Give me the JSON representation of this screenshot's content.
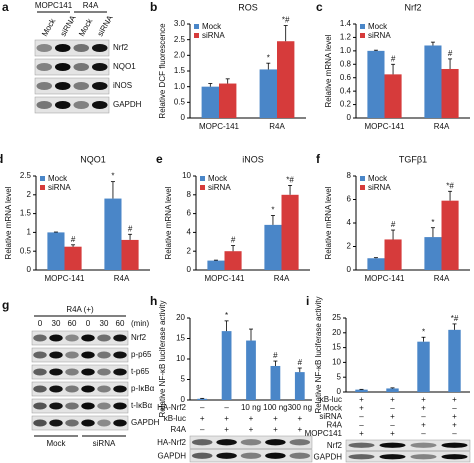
{
  "chart_data": [
    {
      "type": "bar",
      "panel": "b",
      "title": "ROS",
      "y_label": "Relative DCF fluorescence",
      "categories": [
        "MOPC-141",
        "R4A"
      ],
      "series": [
        {
          "name": "Mock",
          "color": "#4a86c8",
          "values": [
            1.0,
            1.55
          ],
          "errors": [
            0.1,
            0.2
          ],
          "annotations": [
            null,
            "*"
          ]
        },
        {
          "name": "siRNA",
          "color": "#d63b3b",
          "values": [
            1.1,
            2.45
          ],
          "errors": [
            0.15,
            0.5
          ],
          "annotations": [
            null,
            "*#"
          ]
        }
      ],
      "ylim": [
        0,
        3.0
      ],
      "yticks": [
        0,
        0.5,
        {
          "value": 1,
          "label": "1.0"
        },
        1.5,
        {
          "value": 2,
          "label": "2.0"
        },
        2.5,
        {
          "value": 3,
          "label": "3.0"
        }
      ]
    },
    {
      "type": "bar",
      "panel": "c",
      "title": "Nrf2",
      "y_label": "Relative mRNA level",
      "categories": [
        "MOPC-141",
        "R4A"
      ],
      "series": [
        {
          "name": "Mock",
          "color": "#4a86c8",
          "values": [
            1.0,
            1.08
          ],
          "errors": [
            0.01,
            0.05
          ],
          "annotations": [
            null,
            null
          ]
        },
        {
          "name": "siRNA",
          "color": "#d63b3b",
          "values": [
            0.65,
            0.73
          ],
          "errors": [
            0.15,
            0.15
          ],
          "annotations": [
            "#",
            "#"
          ]
        }
      ],
      "ylim": [
        0,
        1.4
      ],
      "yticks": [
        0,
        0.2,
        0.4,
        0.6,
        0.8,
        {
          "value": 1,
          "label": "1.0"
        },
        1.2,
        1.4
      ]
    },
    {
      "type": "bar",
      "panel": "d",
      "title": "NQO1",
      "y_label": "Relative mRNA level",
      "categories": [
        "MOPC-141",
        "R4A"
      ],
      "series": [
        {
          "name": "Mock",
          "color": "#4a86c8",
          "values": [
            1.0,
            1.9
          ],
          "errors": [
            0.01,
            0.45
          ],
          "annotations": [
            null,
            "*"
          ]
        },
        {
          "name": "siRNA",
          "color": "#d63b3b",
          "values": [
            0.62,
            0.8
          ],
          "errors": [
            0.05,
            0.15
          ],
          "annotations": [
            "#",
            "#"
          ]
        }
      ],
      "ylim": [
        0,
        2.5
      ],
      "yticks": [
        0,
        0.5,
        1,
        1.5,
        2,
        2.5
      ]
    },
    {
      "type": "bar",
      "panel": "e",
      "title": "iNOS",
      "y_label": "Relative mRNA level",
      "categories": [
        "MOPC-141",
        "R4A"
      ],
      "series": [
        {
          "name": "Mock",
          "color": "#4a86c8",
          "values": [
            1.0,
            4.8
          ],
          "errors": [
            0.05,
            1.0
          ],
          "annotations": [
            null,
            "*"
          ]
        },
        {
          "name": "siRNA",
          "color": "#d63b3b",
          "values": [
            2.0,
            8.0
          ],
          "errors": [
            0.6,
            1.0
          ],
          "annotations": [
            "#",
            "*#"
          ]
        }
      ],
      "ylim": [
        0,
        10
      ],
      "yticks": [
        0,
        2,
        4,
        6,
        8,
        10
      ]
    },
    {
      "type": "bar",
      "panel": "f",
      "title": "TGFβ1",
      "y_label": "Relative mRNA level",
      "categories": [
        "MOPC-141",
        "R4A"
      ],
      "series": [
        {
          "name": "Mock",
          "color": "#4a86c8",
          "values": [
            1.0,
            2.8
          ],
          "errors": [
            0.05,
            0.8
          ],
          "annotations": [
            null,
            "*"
          ]
        },
        {
          "name": "siRNA",
          "color": "#d63b3b",
          "values": [
            2.6,
            5.9
          ],
          "errors": [
            0.8,
            0.8
          ],
          "annotations": [
            "#",
            "*#"
          ]
        }
      ],
      "ylim": [
        0,
        8
      ],
      "yticks": [
        0,
        2,
        4,
        6,
        8
      ]
    },
    {
      "type": "bar",
      "panel": "h",
      "y_label": "Relative NF-κB luciferase activity",
      "color": "#4a86c8",
      "values": [
        0.3,
        16.8,
        14.5,
        8.3,
        6.8
      ],
      "errors": [
        0.1,
        2.5,
        2.8,
        1.2,
        1.0
      ],
      "annotations": [
        null,
        "*",
        null,
        "#",
        "#"
      ],
      "ylim": [
        0,
        20
      ],
      "yticks": [
        0,
        5,
        10,
        15,
        20
      ],
      "conditions": [
        {
          "label": "HA-Nrf2",
          "values": [
            "–",
            "–",
            "10 ng",
            "100 ng",
            "300 ng"
          ]
        },
        {
          "label": "κB-luc",
          "values": [
            "+",
            "+",
            "+",
            "+",
            "+"
          ]
        },
        {
          "label": "R4A",
          "values": [
            "–",
            "+",
            "+",
            "+",
            "+"
          ]
        }
      ],
      "blot_labels": [
        "HA-Nrf2",
        "GAPDH"
      ]
    },
    {
      "type": "bar",
      "panel": "i",
      "y_label": "Relative NF-κB luciferase activity",
      "color": "#4a86c8",
      "values": [
        0.8,
        1.2,
        17,
        21
      ],
      "errors": [
        0.1,
        0.2,
        1.5,
        2.0
      ],
      "annotations": [
        null,
        null,
        "*",
        "*#"
      ],
      "ylim": [
        0,
        25
      ],
      "yticks": [
        0,
        5,
        10,
        15,
        20,
        25
      ],
      "conditions": [
        {
          "label": "κB-luc",
          "values": [
            "+",
            "+",
            "+",
            "+"
          ]
        },
        {
          "label": "Mock",
          "values": [
            "+",
            "–",
            "+",
            "–"
          ]
        },
        {
          "label": "siRNA",
          "values": [
            "–",
            "+",
            "–",
            "+"
          ]
        },
        {
          "label": "R4A",
          "values": [
            "–",
            "–",
            "+",
            "+"
          ]
        },
        {
          "label": "MOPC141",
          "values": [
            "+",
            "+",
            "–",
            "–"
          ]
        }
      ],
      "blot_labels": [
        "Nrf2",
        "GAPDH"
      ]
    }
  ],
  "blots": {
    "a": {
      "panel": "a",
      "groups": [
        "MOPC141",
        "R4A"
      ],
      "lanes": [
        "Mock",
        "siRNA",
        "Mock",
        "siRNA"
      ],
      "rows": [
        "Nrf2",
        "NQO1",
        "iNOS",
        "GAPDH"
      ]
    },
    "g": {
      "panel": "g",
      "treatment": "R4A (+)",
      "lanes": [
        "0",
        "30",
        "60",
        "0",
        "30",
        "60"
      ],
      "unit": "(min)",
      "rows": [
        "Nrf2",
        "p-p65",
        "t-p65",
        "p-IκBα",
        "t-IκBα",
        "GAPDH"
      ],
      "groups": [
        "Mock",
        "siRNA"
      ]
    }
  }
}
